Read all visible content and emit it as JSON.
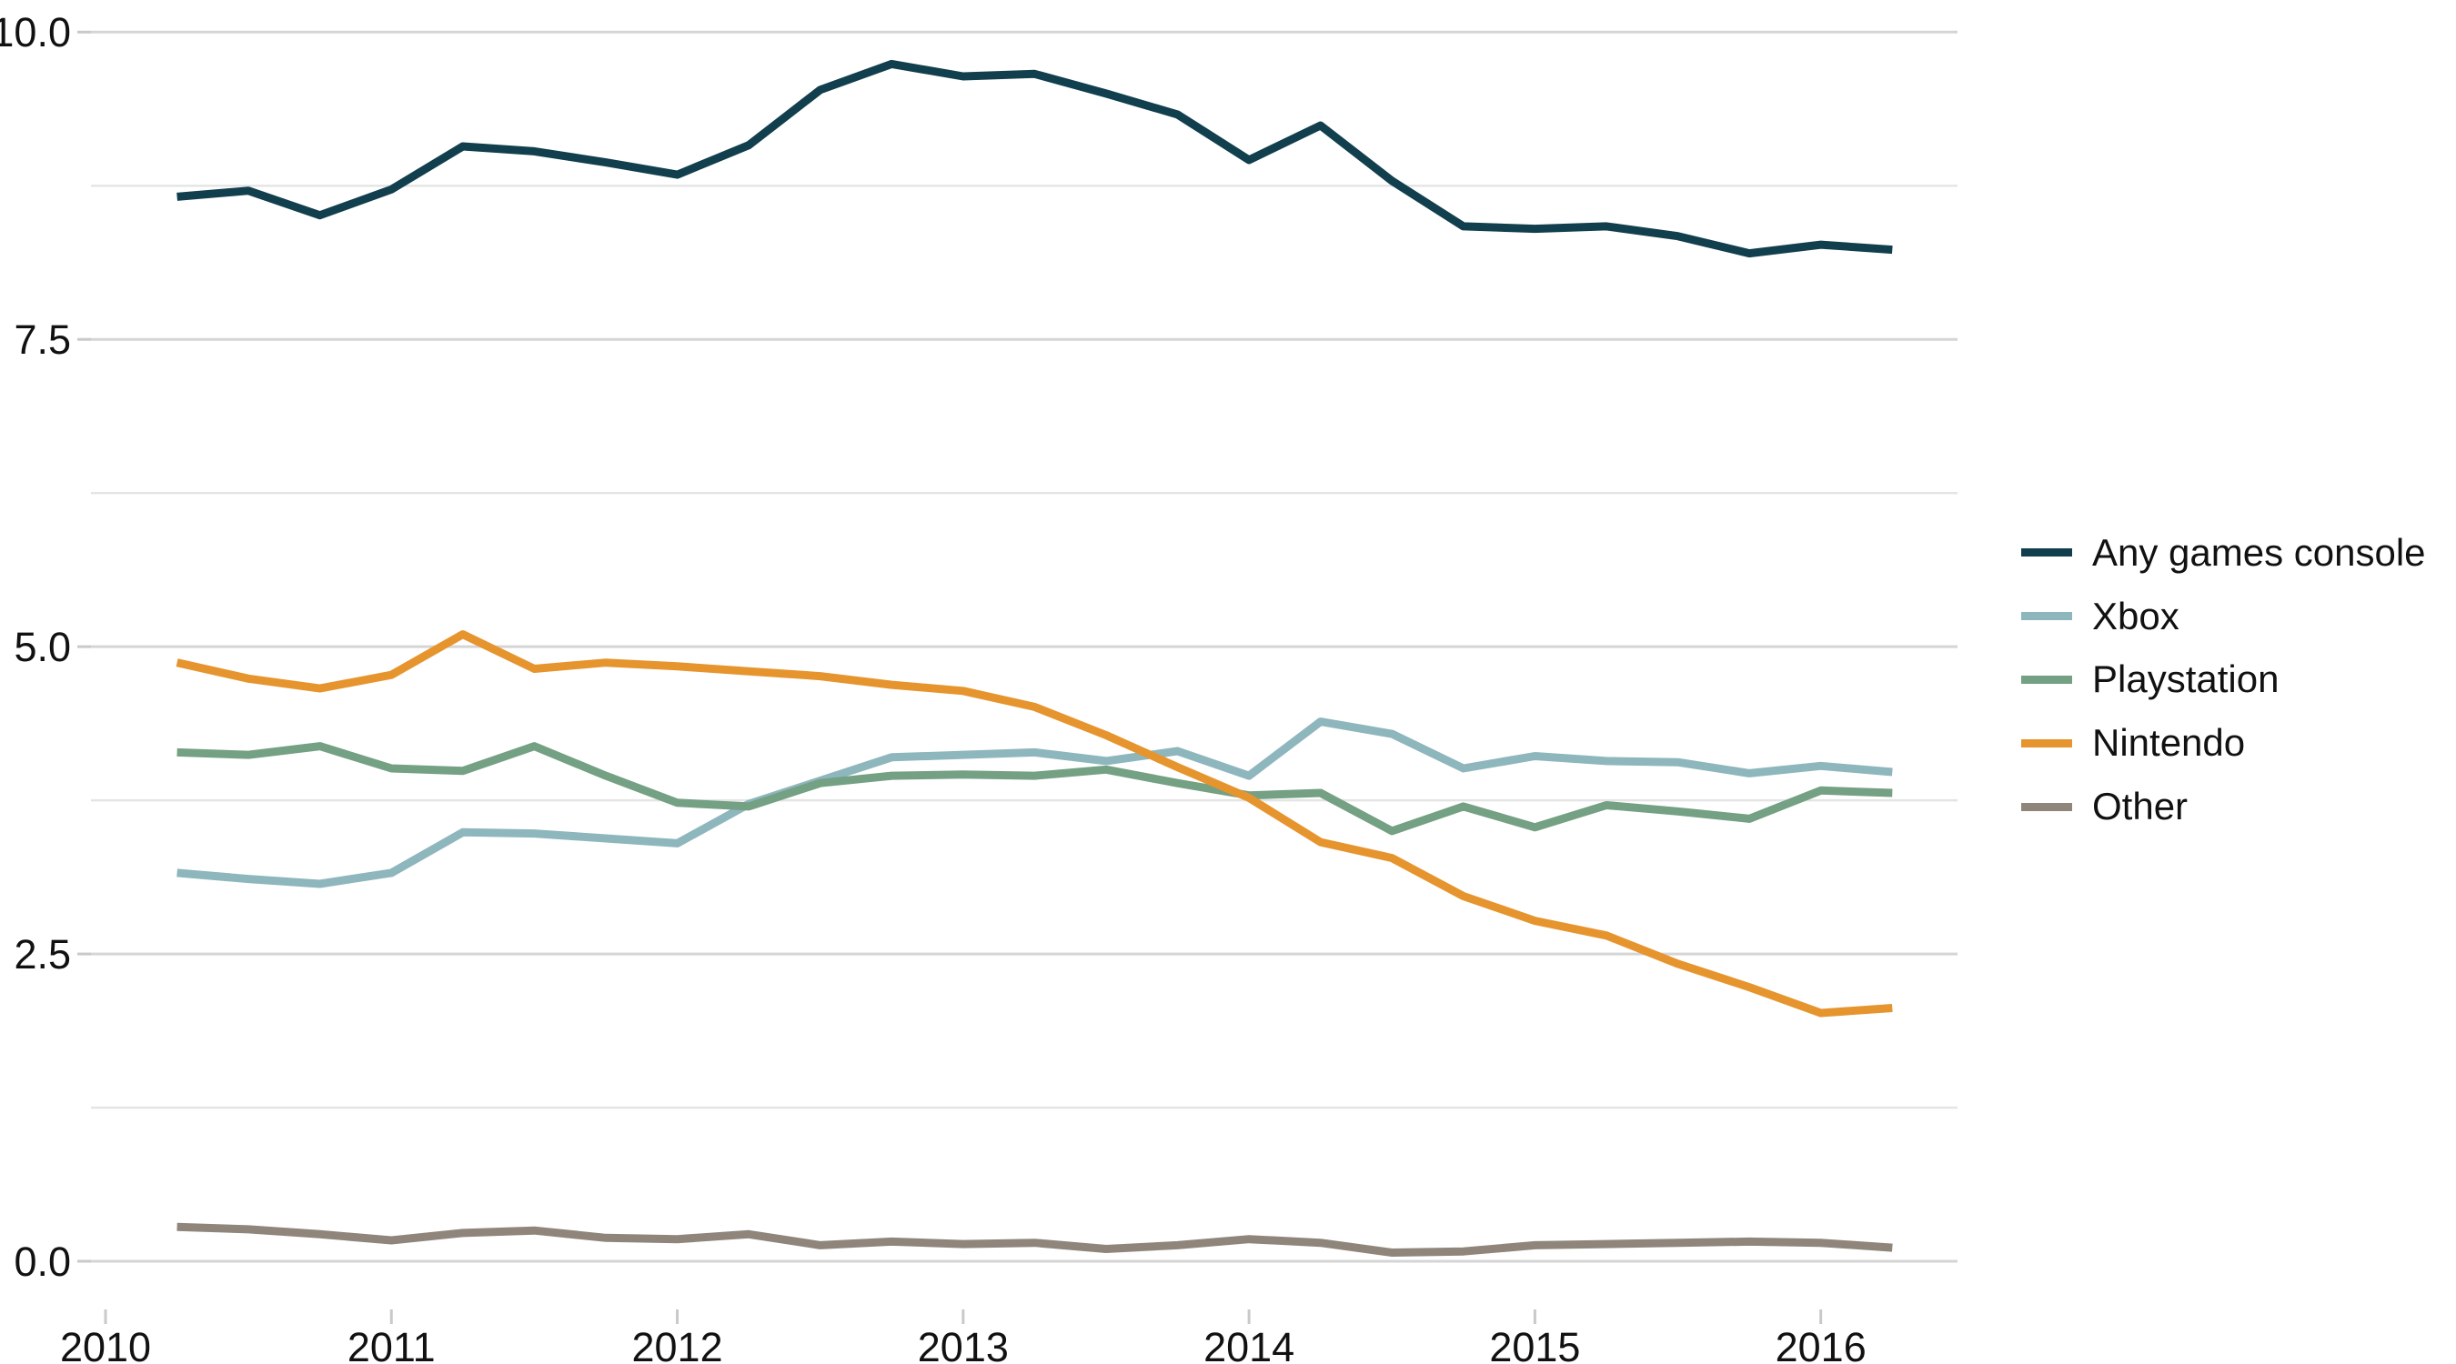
{
  "chart_data": {
    "type": "line",
    "title": "",
    "xlabel": "",
    "ylabel": "",
    "x": [
      2010.25,
      2010.5,
      2010.75,
      2011.0,
      2011.25,
      2011.5,
      2011.75,
      2012.0,
      2012.25,
      2012.5,
      2012.75,
      2013.0,
      2013.25,
      2013.5,
      2013.75,
      2014.0,
      2014.25,
      2014.5,
      2014.75,
      2015.0,
      2015.25,
      2015.5,
      2015.75,
      2016.0,
      2016.25
    ],
    "x_ticks": [
      {
        "value": 2010,
        "label": "2010"
      },
      {
        "value": 2011,
        "label": "2011"
      },
      {
        "value": 2012,
        "label": "2012"
      },
      {
        "value": 2013,
        "label": "2013"
      },
      {
        "value": 2014,
        "label": "2014"
      },
      {
        "value": 2015,
        "label": "2015"
      },
      {
        "value": 2016,
        "label": "2016"
      }
    ],
    "y_ticks": [
      {
        "value": 0.0,
        "label": "0.0"
      },
      {
        "value": 2.5,
        "label": "2.5"
      },
      {
        "value": 5.0,
        "label": "5.0"
      },
      {
        "value": 7.5,
        "label": "7.5"
      },
      {
        "value": 10.0,
        "label": "10.0"
      }
    ],
    "y_minor_ticks": [
      1.25,
      3.75,
      6.25,
      8.75
    ],
    "ylim": [
      0,
      10
    ],
    "xlim": [
      2009.95,
      2016.48
    ],
    "grid": "horizontal-only",
    "legend_position": "right-center",
    "series": [
      {
        "name": "Any games console",
        "color": "#123f4d",
        "values": [
          8.66,
          8.71,
          8.51,
          8.72,
          9.07,
          9.03,
          8.94,
          8.84,
          9.08,
          9.53,
          9.74,
          9.64,
          9.66,
          9.5,
          9.33,
          8.96,
          9.24,
          8.79,
          8.42,
          8.4,
          8.42,
          8.34,
          8.2,
          8.27,
          8.23
        ]
      },
      {
        "name": "Xbox",
        "color": "#8eb6bd",
        "values": [
          3.16,
          3.11,
          3.07,
          3.16,
          3.49,
          3.48,
          3.44,
          3.4,
          3.72,
          3.91,
          4.1,
          4.12,
          4.14,
          4.07,
          4.15,
          3.95,
          4.39,
          4.29,
          4.01,
          4.11,
          4.07,
          4.06,
          3.97,
          4.03,
          3.98
        ]
      },
      {
        "name": "Playstation",
        "color": "#74a083",
        "values": [
          4.14,
          4.12,
          4.19,
          4.01,
          3.99,
          4.19,
          3.95,
          3.73,
          3.7,
          3.89,
          3.95,
          3.96,
          3.95,
          4.0,
          3.89,
          3.79,
          3.81,
          3.5,
          3.7,
          3.53,
          3.71,
          3.66,
          3.6,
          3.83,
          3.81
        ]
      },
      {
        "name": "Nintendo",
        "color": "#e6952e",
        "values": [
          4.87,
          4.74,
          4.66,
          4.77,
          5.1,
          4.82,
          4.87,
          4.84,
          4.8,
          4.76,
          4.69,
          4.64,
          4.51,
          4.28,
          4.02,
          3.77,
          3.41,
          3.28,
          2.97,
          2.77,
          2.65,
          2.42,
          2.23,
          2.02,
          2.06
        ]
      },
      {
        "name": "Other",
        "color": "#8f857b",
        "values": [
          0.28,
          0.26,
          0.22,
          0.17,
          0.23,
          0.25,
          0.19,
          0.18,
          0.22,
          0.13,
          0.16,
          0.14,
          0.15,
          0.1,
          0.13,
          0.18,
          0.15,
          0.07,
          0.08,
          0.13,
          0.14,
          0.15,
          0.16,
          0.15,
          0.11
        ]
      }
    ]
  },
  "colors": {
    "background": "#ffffff",
    "grid_major": "#d5d5d5",
    "grid_minor": "#e4e4e4",
    "tick_mark": "#c9c9c9",
    "axis_text": "#111111"
  }
}
